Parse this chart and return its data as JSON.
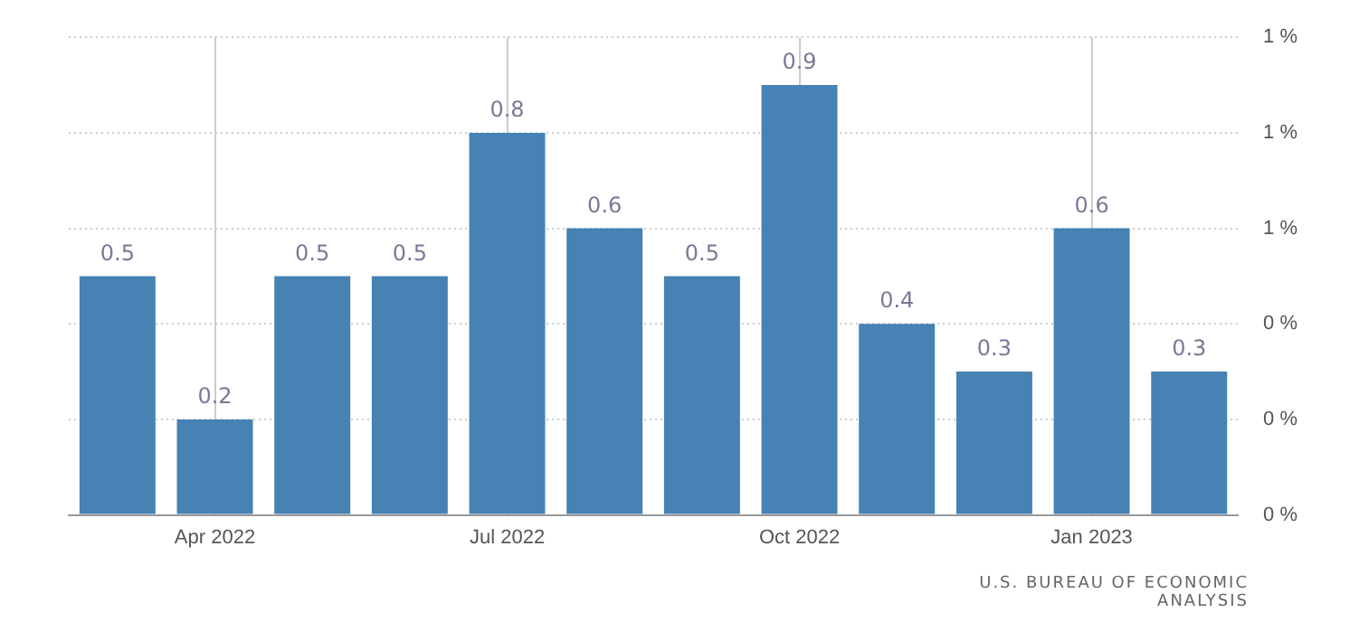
{
  "chart_data": {
    "type": "bar",
    "categories": [
      null,
      "Apr 2022",
      null,
      null,
      "Jul 2022",
      null,
      null,
      "Oct 2022",
      null,
      null,
      "Jan 2023",
      null
    ],
    "values": [
      0.5,
      0.2,
      0.5,
      0.5,
      0.8,
      0.6,
      0.5,
      0.9,
      0.4,
      0.3,
      0.6,
      0.3
    ],
    "color": "#4682b4",
    "ylim": [
      0,
      1.0
    ],
    "yticks": [
      {
        "value": 0,
        "label": "0 %"
      },
      {
        "value": 0.2,
        "label": "0 %"
      },
      {
        "value": 0.4,
        "label": "0 %"
      },
      {
        "value": 0.6,
        "label": "1 %"
      },
      {
        "value": 0.8,
        "label": "1 %"
      },
      {
        "value": 1.0,
        "label": "1 %"
      }
    ],
    "grid": true,
    "data_labels": true,
    "annotations": [
      "U.S. BUREAU OF ECONOMIC ANALYSIS"
    ]
  }
}
